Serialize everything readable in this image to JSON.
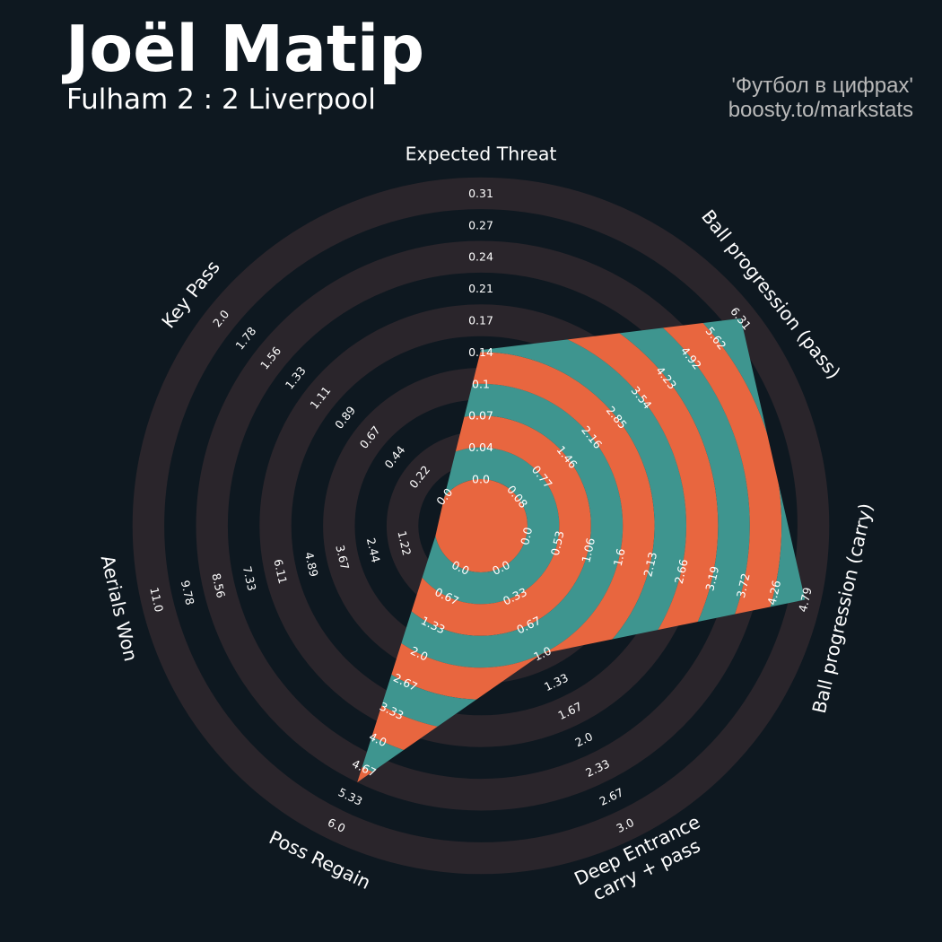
{
  "header": {
    "player_name": "Joël Matip",
    "match": "Fulham 2 : 2 Liverpool",
    "credit_line1": "'Футбол в цифрах'",
    "credit_line2": "boosty.to/markstats"
  },
  "colors": {
    "background": "#0e1820",
    "ring_band": "#2a252b",
    "fill_a": "#e8663f",
    "fill_b": "#3e958f",
    "text": "#ffffff"
  },
  "chart_data": {
    "type": "radar",
    "title": "Joël Matip",
    "subtitle": "Fulham 2 : 2 Liverpool",
    "parameters": [
      {
        "label": "Expected Threat",
        "label_lines": [
          "Expected Threat"
        ],
        "min": 0.0,
        "max": 0.31,
        "ticks": [
          "0.0",
          "0.04",
          "0.07",
          "0.1",
          "0.14",
          "0.17",
          "0.21",
          "0.24",
          "0.27",
          "0.31"
        ],
        "value": 0.14
      },
      {
        "label": "Ball progression (pass)",
        "label_lines": [
          "Ball progression (pass)"
        ],
        "min": 0.0,
        "max": 6.31,
        "ticks": [
          "0.08",
          "0.77",
          "1.46",
          "2.16",
          "2.85",
          "3.54",
          "4.23",
          "4.92",
          "5.62",
          "6.31"
        ],
        "value": 6.31
      },
      {
        "label": "Ball progression (carry)",
        "label_lines": [
          "Ball progression (carry)"
        ],
        "min": 0.0,
        "max": 4.79,
        "ticks": [
          "0.0",
          "0.53",
          "1.06",
          "1.6",
          "2.13",
          "2.66",
          "3.19",
          "3.72",
          "4.26",
          "4.79"
        ],
        "value": 4.79
      },
      {
        "label": "Deep Entrance carry + pass",
        "label_lines": [
          "Deep Entrance",
          "carry + pass"
        ],
        "min": 0.0,
        "max": 3.0,
        "ticks": [
          "0.0",
          "0.33",
          "0.67",
          "1.0",
          "1.33",
          "1.67",
          "2.0",
          "2.33",
          "2.67",
          "3.0"
        ],
        "value": 1.0
      },
      {
        "label": "Poss Regain",
        "label_lines": [
          "Poss Regain"
        ],
        "min": 0.0,
        "max": 6.0,
        "ticks": [
          "0.0",
          "0.67",
          "1.33",
          "2.0",
          "2.67",
          "3.33",
          "4.0",
          "4.67",
          "5.33",
          "6.0"
        ],
        "value": 5.0
      },
      {
        "label": "Aerials Won",
        "label_lines": [
          "Aerials Won"
        ],
        "min": 0.0,
        "max": 11.0,
        "ticks": [
          "1.22",
          "2.44",
          "3.67",
          "4.89",
          "6.11",
          "7.33",
          "8.56",
          "9.78",
          "11.0"
        ],
        "value": 0.0
      },
      {
        "label": "Key Pass",
        "label_lines": [
          "Key Pass"
        ],
        "min": 0.0,
        "max": 2.0,
        "ticks": [
          "0.0",
          "0.22",
          "0.44",
          "0.67",
          "0.89",
          "1.11",
          "1.33",
          "1.56",
          "1.78",
          "2.0"
        ],
        "value": 0.0
      }
    ]
  }
}
